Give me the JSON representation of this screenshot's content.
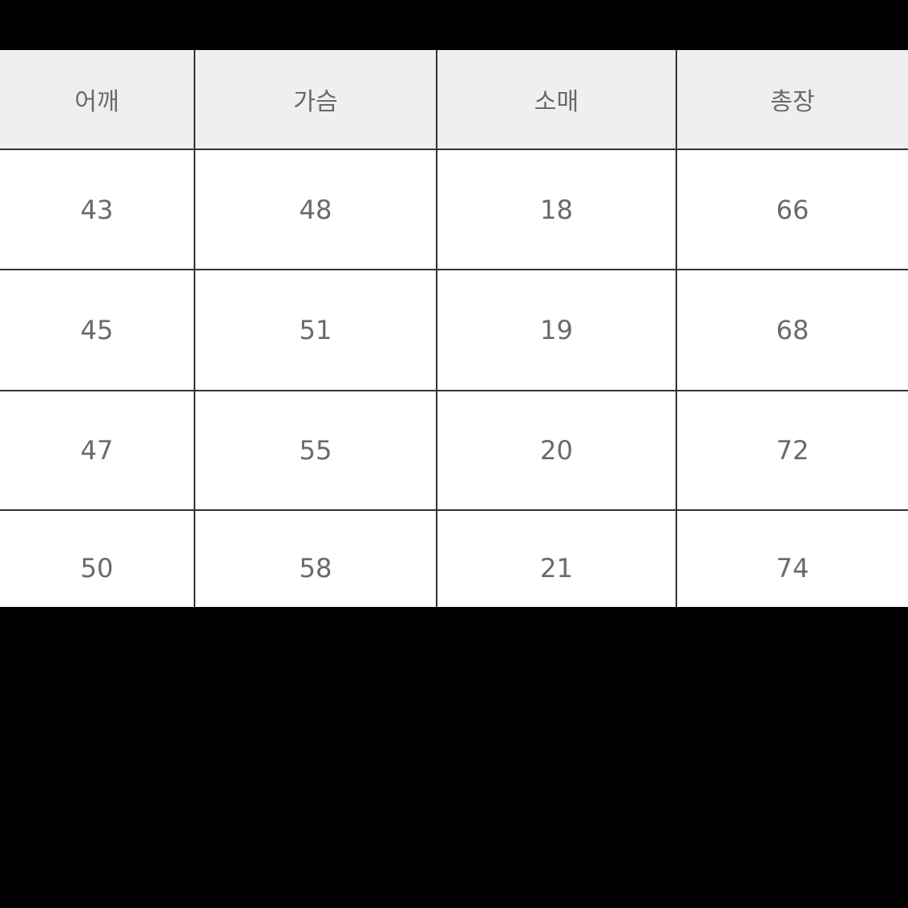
{
  "table": {
    "headers": [
      "어깨",
      "가슴",
      "소매",
      "총장"
    ],
    "rows": [
      [
        "43",
        "48",
        "18",
        "66"
      ],
      [
        "45",
        "51",
        "19",
        "68"
      ],
      [
        "47",
        "55",
        "20",
        "72"
      ],
      [
        "50",
        "58",
        "21",
        "74"
      ]
    ]
  },
  "colors": {
    "header_bg": "#efefef",
    "text": "#6a6a6a",
    "border": "#333333",
    "background": "#000000"
  }
}
